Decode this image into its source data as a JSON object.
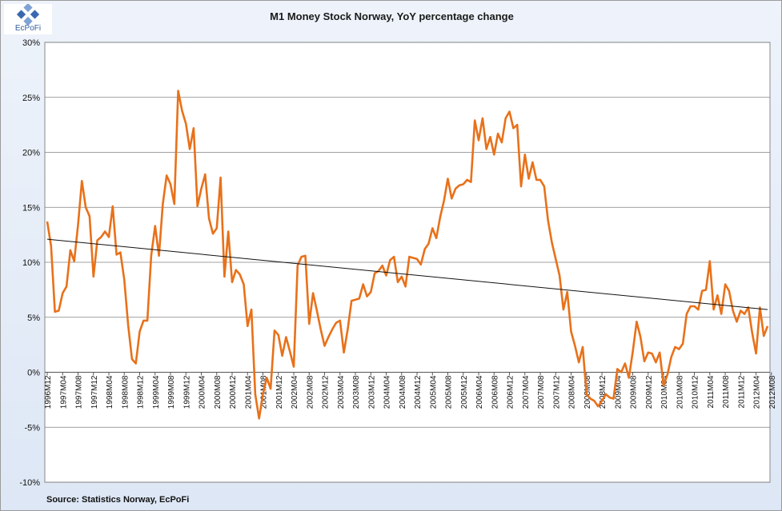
{
  "logo": {
    "text": "EcPoFi",
    "icon": "ecpofi-logo-icon"
  },
  "chart_data": {
    "type": "line",
    "title": "M1 Money Stock Norway, YoY percentage change",
    "source": "Source: Statistics Norway, EcPoFi",
    "ylim": [
      -10,
      30
    ],
    "yticks": [
      "-10%",
      "-5%",
      "0%",
      "5%",
      "10%",
      "15%",
      "20%",
      "25%",
      "30%"
    ],
    "ytick_values": [
      -10,
      -5,
      0,
      5,
      10,
      15,
      20,
      25,
      30
    ],
    "xtick_labels": [
      "1996M12",
      "1997M04",
      "1997M08",
      "1997M12",
      "1998M04",
      "1998M08",
      "1998M12",
      "1999M04",
      "1999M08",
      "1999M12",
      "2000M04",
      "2000M08",
      "2000M12",
      "2001M04",
      "2001M08",
      "2001M12",
      "2002M04",
      "2002M08",
      "2002M12",
      "2003M04",
      "2003M08",
      "2003M12",
      "2004M04",
      "2004M08",
      "2004M12",
      "2005M04",
      "2005M08",
      "2005M12",
      "2006M04",
      "2006M08",
      "2006M12",
      "2007M04",
      "2007M08",
      "2007M12",
      "2008M04",
      "2008M08",
      "2008M12",
      "2009M04",
      "2009M08",
      "2009M12",
      "2010M04",
      "2010M08",
      "2010M12",
      "2011M04",
      "2011M08",
      "2011M12",
      "2012M04",
      "2012M08"
    ],
    "grid": true,
    "legend": "none",
    "series": [
      {
        "color": "#e8711a",
        "values": [
          13.7,
          11.5,
          5.5,
          5.6,
          7.2,
          7.8,
          11.1,
          10.1,
          13.4,
          17.4,
          15.0,
          14.2,
          8.7,
          12.0,
          12.3,
          12.8,
          12.3,
          15.1,
          10.7,
          10.9,
          8.4,
          4.3,
          1.2,
          0.8,
          3.7,
          4.7,
          4.7,
          10.6,
          13.3,
          10.6,
          15.3,
          17.9,
          17.1,
          15.3,
          25.6,
          23.8,
          22.6,
          20.3,
          22.2,
          15.1,
          16.7,
          18.0,
          14.0,
          12.6,
          13.1,
          17.7,
          8.7,
          12.8,
          8.2,
          9.3,
          8.9,
          8.0,
          4.2,
          5.7,
          -2.0,
          -4.2,
          -2.0,
          -0.5,
          -1.5,
          3.8,
          3.4,
          1.5,
          3.2,
          1.9,
          0.5,
          9.7,
          10.5,
          10.6,
          4.4,
          7.2,
          5.6,
          3.9,
          2.4,
          3.2,
          3.9,
          4.5,
          4.7,
          1.8,
          3.9,
          6.5,
          6.6,
          6.7,
          8.0,
          6.9,
          7.3,
          9.0,
          9.2,
          9.7,
          8.8,
          10.2,
          10.5,
          8.2,
          8.7,
          7.8,
          10.5,
          10.4,
          10.3,
          9.8,
          11.2,
          11.7,
          13.1,
          12.2,
          14.1,
          15.6,
          17.6,
          15.8,
          16.7,
          17.0,
          17.1,
          17.5,
          17.3,
          22.9,
          21.1,
          23.1,
          20.3,
          21.4,
          19.8,
          21.7,
          20.9,
          23.1,
          23.7,
          22.2,
          22.5,
          16.9,
          19.8,
          17.6,
          19.1,
          17.5,
          17.5,
          16.9,
          13.8,
          11.8,
          10.3,
          8.8,
          5.7,
          7.3,
          3.7,
          2.4,
          0.9,
          2.3,
          -2.0,
          -2.4,
          -2.6,
          -3.1,
          -2.6,
          -2.0,
          -2.3,
          -2.4,
          0.3,
          0.0,
          0.8,
          -0.5,
          1.9,
          4.6,
          3.2,
          1.0,
          1.8,
          1.7,
          0.9,
          1.8,
          -1.2,
          -0.2,
          1.4,
          2.3,
          2.1,
          2.6,
          5.3,
          6.0,
          6.0,
          5.7,
          7.4,
          7.5,
          10.1,
          5.7,
          7.0,
          5.3,
          8.0,
          7.4,
          5.6,
          4.6,
          5.6,
          5.3,
          5.9,
          3.6,
          1.7,
          5.9,
          3.3,
          4.2
        ]
      }
    ],
    "trendline": {
      "color": "#111111",
      "start": 12.1,
      "end": 5.7
    }
  }
}
